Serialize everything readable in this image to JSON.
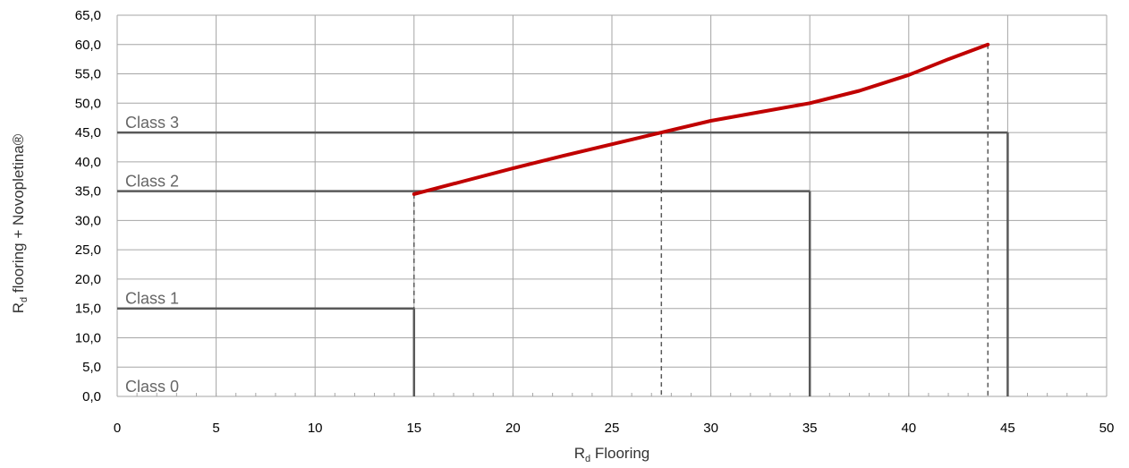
{
  "chart_data": {
    "type": "line",
    "x_axis": {
      "label_main": "R",
      "label_sub": "d",
      "label_rest": " Flooring",
      "min": 0,
      "max": 50,
      "major_step": 5,
      "minor_step": 1,
      "tick_labels": [
        "0",
        "5",
        "10",
        "15",
        "20",
        "25",
        "30",
        "35",
        "40",
        "45",
        "50"
      ]
    },
    "y_axis": {
      "label_main": "R",
      "label_sub": "d",
      "label_rest": " flooring + Novopletina®",
      "min": 0,
      "max": 65,
      "major_step": 5,
      "tick_labels": [
        "0,0",
        "5,0",
        "10,0",
        "15,0",
        "20,0",
        "25,0",
        "30,0",
        "35,0",
        "40,0",
        "45,0",
        "50,0",
        "55,0",
        "60,0",
        "65,0"
      ]
    },
    "grid": true,
    "class_boundaries": [
      {
        "label": "Class 0",
        "y": 0,
        "x_end": 0
      },
      {
        "label": "Class 1",
        "y": 15,
        "x_end": 15
      },
      {
        "label": "Class 2",
        "y": 35,
        "x_end": 35
      },
      {
        "label": "Class 3",
        "y": 45,
        "x_end": 45
      }
    ],
    "series": [
      {
        "color": "#c00000",
        "x": [
          15,
          17.5,
          20,
          22.5,
          25,
          27.5,
          30,
          32.5,
          35,
          37.5,
          40,
          42,
          44
        ],
        "y": [
          34.5,
          36.7,
          38.9,
          41.0,
          43.0,
          45.0,
          47.0,
          48.5,
          50.0,
          52.1,
          54.8,
          57.5,
          60.0
        ]
      }
    ],
    "dashed_verticals": [
      {
        "x": 15,
        "y_top": 34.5
      },
      {
        "x": 27.5,
        "y_top": 45
      },
      {
        "x": 44,
        "y_top": 60
      }
    ]
  },
  "colors": {
    "grid": "#a6a6a6",
    "class_line": "#595959",
    "series": "#c00000",
    "dashed": "#595959"
  }
}
